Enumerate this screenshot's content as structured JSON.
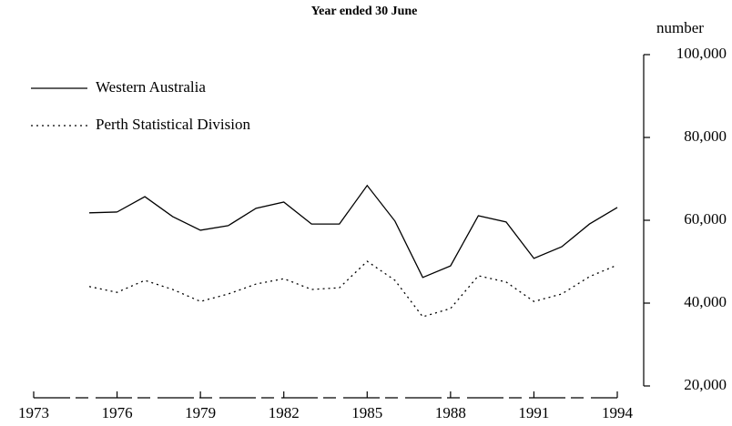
{
  "chart_data": {
    "type": "line",
    "title": "Year ended 30 June",
    "y_axis_label": "number",
    "x": [
      1975,
      1976,
      1977,
      1978,
      1979,
      1980,
      1981,
      1982,
      1983,
      1984,
      1985,
      1986,
      1987,
      1988,
      1989,
      1990,
      1991,
      1992,
      1993,
      1994
    ],
    "series": [
      {
        "name": "Western Australia",
        "color": "#000000",
        "line_style": "solid",
        "values": [
          61800,
          62000,
          65700,
          60900,
          57600,
          58700,
          62900,
          64400,
          59100,
          59100,
          68400,
          59800,
          46200,
          49000,
          61100,
          59600,
          50800,
          53600,
          59100,
          63100
        ]
      },
      {
        "name": "Perth Statistical Division",
        "color": "#000000",
        "line_style": "dotted",
        "values": [
          44000,
          42600,
          45500,
          43300,
          40400,
          42200,
          44600,
          45900,
          43300,
          43700,
          50100,
          45500,
          36700,
          38700,
          46600,
          45100,
          40400,
          42200,
          46400,
          49200
        ]
      }
    ],
    "xlim": [
      1973,
      1994
    ],
    "xticks": [
      1973,
      1976,
      1979,
      1982,
      1985,
      1988,
      1991,
      1994
    ],
    "ylim": [
      20000,
      100000
    ],
    "yticks": [
      {
        "value": 20000,
        "label": "20,000"
      },
      {
        "value": 40000,
        "label": "40,000"
      },
      {
        "value": 60000,
        "label": "60,000"
      },
      {
        "value": 80000,
        "label": "80,000"
      },
      {
        "value": 100000,
        "label": "100,000"
      }
    ],
    "y_axis_side": "right"
  }
}
